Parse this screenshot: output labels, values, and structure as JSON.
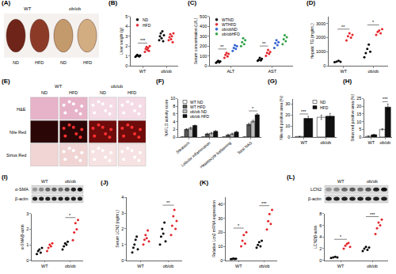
{
  "chart_data": [
    {
      "panel": "(B)",
      "type": "strip",
      "categories": [
        "WT",
        "ob/ob"
      ],
      "y_label": "Liver weight (g)",
      "ylim": [
        0,
        5
      ],
      "yticks": [
        0,
        1,
        2,
        3,
        4,
        5
      ],
      "legend": "top left",
      "series": [
        {
          "name": "ND",
          "color": "#000000",
          "values": [
            [
              0.9,
              1.0,
              1.1,
              1.0,
              0.95,
              1.05
            ],
            [
              2.6,
              3.0,
              3.3,
              2.8,
              3.5,
              2.5,
              3.1
            ]
          ]
        },
        {
          "name": "HFD",
          "color": "#e3242b",
          "values": [
            [
              1.4,
              1.7,
              1.9,
              1.6,
              1.8,
              1.5,
              2.0
            ],
            [
              2.6,
              2.9,
              3.2,
              2.7,
              3.0,
              2.4,
              3.3
            ]
          ]
        }
      ],
      "significance": [
        {
          "from": [
            0,
            0
          ],
          "to": [
            0,
            1
          ],
          "y": 2.3,
          "text": "***"
        }
      ]
    },
    {
      "panel": "(C)",
      "type": "strip",
      "categories": [
        "ALT",
        "AST"
      ],
      "y_label": "Serum concentration (U/L)",
      "ylim": [
        0,
        500
      ],
      "yticks": [
        0,
        100,
        200,
        300,
        400,
        500
      ],
      "legend": "top left",
      "series": [
        {
          "name": "WTND",
          "color": "#000000",
          "values": [
            [
              30,
              40,
              50,
              35,
              45
            ],
            [
              50,
              60,
              80,
              55,
              70
            ]
          ]
        },
        {
          "name": "WTHFD",
          "color": "#e3242b",
          "values": [
            [
              80,
              110,
              130,
              95,
              120
            ],
            [
              100,
              130,
              160,
              120,
              140
            ]
          ]
        },
        {
          "name": "ob/obND",
          "color": "#2f5fd0",
          "values": [
            [
              150,
              180,
              210,
              170,
              200
            ],
            [
              180,
              230,
              260,
              210,
              240
            ]
          ]
        },
        {
          "name": "ob/obHFD",
          "color": "#2ea043",
          "values": [
            [
              200,
              240,
              280,
              220,
              260
            ],
            [
              220,
              270,
              310,
              250,
              290
            ]
          ]
        }
      ],
      "significance": [
        {
          "from": [
            0,
            0
          ],
          "to": [
            0,
            1
          ],
          "y": 170,
          "text": "**"
        },
        {
          "from": [
            1,
            0
          ],
          "to": [
            1,
            1
          ],
          "y": 200,
          "text": "**"
        }
      ]
    },
    {
      "panel": "(D)",
      "type": "strip",
      "categories": [
        "WT",
        "ob/ob"
      ],
      "y_label": "Hepatic TG (mg/mL)",
      "ylim": [
        0,
        3500
      ],
      "yticks": [
        0,
        1000,
        2000,
        3000
      ],
      "series": [
        {
          "name": "ND",
          "color": "#000000",
          "values": [
            [
              250,
              300,
              350,
              280
            ],
            [
              600,
              900,
              1200,
              1500,
              1000
            ]
          ]
        },
        {
          "name": "HFD",
          "color": "#e3242b",
          "values": [
            [
              1800,
              2100,
              2300,
              2000,
              2200
            ],
            [
              2200,
              2400,
              2500,
              2300,
              2600
            ]
          ]
        }
      ],
      "significance": [
        {
          "from": [
            0,
            0
          ],
          "to": [
            0,
            1
          ],
          "y": 2600,
          "text": "**"
        },
        {
          "from": [
            1,
            0
          ],
          "to": [
            1,
            1
          ],
          "y": 2900,
          "text": "*"
        }
      ]
    },
    {
      "panel": "(F)",
      "type": "bar",
      "categories": [
        "Steatosis",
        "Lobular inflammation",
        "Hepatocyte ballooning",
        "Total NAS"
      ],
      "y_label": "NAFLD activity score",
      "ylim": [
        0,
        10
      ],
      "yticks": [
        0,
        2,
        4,
        6,
        8,
        10
      ],
      "legend": "top left",
      "series": [
        {
          "name": "WT ND",
          "color": "#ffffff",
          "values": [
            0,
            0,
            0,
            0
          ],
          "errors": [
            0,
            0,
            0,
            0
          ]
        },
        {
          "name": "WT HFD",
          "color": "#555555",
          "values": [
            2,
            0.8,
            0.5,
            3.3
          ],
          "errors": [
            0.2,
            0.2,
            0.2,
            0.3
          ]
        },
        {
          "name": "ob/ob ND",
          "color": "#bbbbbb",
          "values": [
            2.3,
            1,
            0.8,
            4.1
          ],
          "errors": [
            0.3,
            0.2,
            0.2,
            0.3
          ]
        },
        {
          "name": "ob/ob HFD",
          "color": "#111111",
          "values": [
            3,
            1.5,
            1.3,
            5.8
          ],
          "errors": [
            0.1,
            0.2,
            0.2,
            0.3
          ]
        }
      ],
      "significance": [
        {
          "from": [
            3,
            1
          ],
          "to": [
            3,
            3
          ],
          "y": 6.8,
          "text": "*"
        }
      ]
    },
    {
      "panel": "(G)",
      "type": "bar",
      "categories": [
        "WT",
        "ob/ob"
      ],
      "y_label": "Nile red positive area (%)",
      "ylim": [
        0,
        35
      ],
      "yticks": [
        0,
        10,
        20,
        30
      ],
      "legend": "top right",
      "series": [
        {
          "name": "ND",
          "color": "#ffffff",
          "values": [
            0.5,
            18
          ],
          "errors": [
            0.2,
            2
          ]
        },
        {
          "name": "HFD",
          "color": "#111111",
          "values": [
            17,
            19
          ],
          "errors": [
            2,
            2.5
          ]
        }
      ],
      "significance": [
        {
          "from": [
            0,
            0
          ],
          "to": [
            0,
            1
          ],
          "y": 21,
          "text": "***"
        }
      ]
    },
    {
      "panel": "(H)",
      "type": "bar",
      "categories": [
        "WT",
        "ob/ob"
      ],
      "y_label": "Sirius red positive area (%)",
      "ylim": [
        0,
        25
      ],
      "yticks": [
        0,
        5,
        10,
        15,
        20,
        25
      ],
      "series": [
        {
          "name": "ND",
          "color": "#ffffff",
          "values": [
            0.5,
            5
          ],
          "errors": [
            0.2,
            0.5
          ]
        },
        {
          "name": "HFD",
          "color": "#111111",
          "values": [
            1.5,
            19.5
          ],
          "errors": [
            0.3,
            2
          ]
        }
      ],
      "significance": [
        {
          "from": [
            1,
            0
          ],
          "to": [
            1,
            1
          ],
          "y": 23,
          "text": "***"
        }
      ]
    },
    {
      "type": "strip",
      "categories": [
        "WT",
        "ob/ob"
      ],
      "y_label": "α-SMA/β-actin",
      "ylim": [
        0,
        3
      ],
      "yticks": [
        0,
        1,
        2,
        3
      ],
      "series": [
        {
          "name": "ND",
          "color": "#000000",
          "values": [
            [
              0.4,
              0.6,
              0.7,
              0.5,
              0.8
            ],
            [
              0.7,
              0.9,
              1.1,
              1.0,
              1.2
            ]
          ]
        },
        {
          "name": "HFD",
          "color": "#e3242b",
          "values": [
            [
              0.6,
              0.8,
              1.0,
              0.9,
              1.1
            ],
            [
              1.3,
              1.8,
              2.4,
              2.0,
              2.6
            ]
          ]
        }
      ],
      "significance": [
        {
          "from": [
            1,
            0
          ],
          "to": [
            1,
            1
          ],
          "y": 2.75,
          "text": "*"
        }
      ]
    },
    {
      "panel": "(J)",
      "type": "strip",
      "categories": [
        "WT",
        "ob/ob"
      ],
      "y_label": "Serum LCN2 (ng/mL)",
      "ylim": [
        0,
        4
      ],
      "yticks": [
        0,
        1,
        2,
        3,
        4
      ],
      "series": [
        {
          "name": "ND",
          "color": "#000000",
          "values": [
            [
              0.5,
              0.8,
              1.0,
              1.3,
              1.5,
              0.7
            ],
            [
              1.0,
              1.5,
              2.0,
              1.7,
              2.4,
              1.2
            ]
          ]
        },
        {
          "name": "HFD",
          "color": "#e3242b",
          "values": [
            [
              1.0,
              1.3,
              1.6,
              1.4,
              1.9,
              1.2
            ],
            [
              1.6,
              2.2,
              2.8,
              3.2,
              2.0,
              2.5
            ]
          ]
        }
      ],
      "significance": [
        {
          "from": [
            1,
            0
          ],
          "to": [
            1,
            1
          ],
          "y": 3.5,
          "text": "**"
        }
      ]
    },
    {
      "panel": "(K)",
      "type": "strip",
      "categories": [
        "WT",
        "ob/ob"
      ],
      "y_label": "Relative Lcn2 mRNA expression",
      "ylim": [
        0,
        45
      ],
      "yticks": [
        0,
        10,
        20,
        30,
        40
      ],
      "series": [
        {
          "name": "ND",
          "color": "#000000",
          "values": [
            [
              0.8,
              1.0,
              1.2,
              0.9,
              1.1
            ],
            [
              9,
              11,
              13,
              10,
              14
            ]
          ]
        },
        {
          "name": "HFD",
          "color": "#e3242b",
          "values": [
            [
              10,
              14,
              18,
              12,
              20
            ],
            [
              22,
              28,
              33,
              26,
              36
            ]
          ]
        }
      ],
      "significance": [
        {
          "from": [
            0,
            0
          ],
          "to": [
            0,
            1
          ],
          "y": 23,
          "text": "*"
        },
        {
          "from": [
            1,
            0
          ],
          "to": [
            1,
            1
          ],
          "y": 39,
          "text": "***"
        }
      ]
    },
    {
      "type": "strip",
      "categories": [
        "WT",
        "ob/ob"
      ],
      "y_label": "LCN2/β-actin",
      "ylim": [
        0,
        8
      ],
      "yticks": [
        0,
        2,
        4,
        6,
        8
      ],
      "series": [
        {
          "name": "ND",
          "color": "#000000",
          "values": [
            [
              0.4,
              0.5,
              0.6,
              0.5
            ],
            [
              1.6,
              2.0,
              2.3,
              1.8,
              2.2
            ]
          ]
        },
        {
          "name": "HFD",
          "color": "#e3242b",
          "values": [
            [
              2.0,
              2.5,
              2.8,
              3.0,
              2.3
            ],
            [
              4.5,
              5.5,
              6.5,
              6.0,
              7.0
            ]
          ]
        }
      ],
      "significance": [
        {
          "from": [
            0,
            0
          ],
          "to": [
            0,
            1
          ],
          "y": 3.6,
          "text": "*"
        },
        {
          "from": [
            1,
            0
          ],
          "to": [
            1,
            1
          ],
          "y": 7.5,
          "text": "***"
        }
      ]
    }
  ],
  "images": [
    {
      "panel": "(A)",
      "type": "photo",
      "groups": [
        "WT",
        "ob/ob"
      ],
      "columns": [
        "ND",
        "HFD",
        "ND",
        "HFD"
      ]
    },
    {
      "panel": "(E)",
      "type": "histology",
      "groups": [
        "WT",
        "ob/ob"
      ],
      "columns": [
        "ND",
        "HFD",
        "ND",
        "HFD"
      ],
      "rows": [
        "H&E",
        "Nile Red",
        "Sirius Red"
      ]
    },
    {
      "panel": "(I)",
      "type": "western blot",
      "groups": [
        "WT",
        "ob/ob"
      ],
      "rows": [
        "α-SMA",
        "β-actin"
      ]
    },
    {
      "panel": "(L)",
      "type": "western blot",
      "groups": [
        "WT",
        "ob/ob"
      ],
      "rows": [
        "LCN2",
        "β-actin"
      ]
    }
  ]
}
